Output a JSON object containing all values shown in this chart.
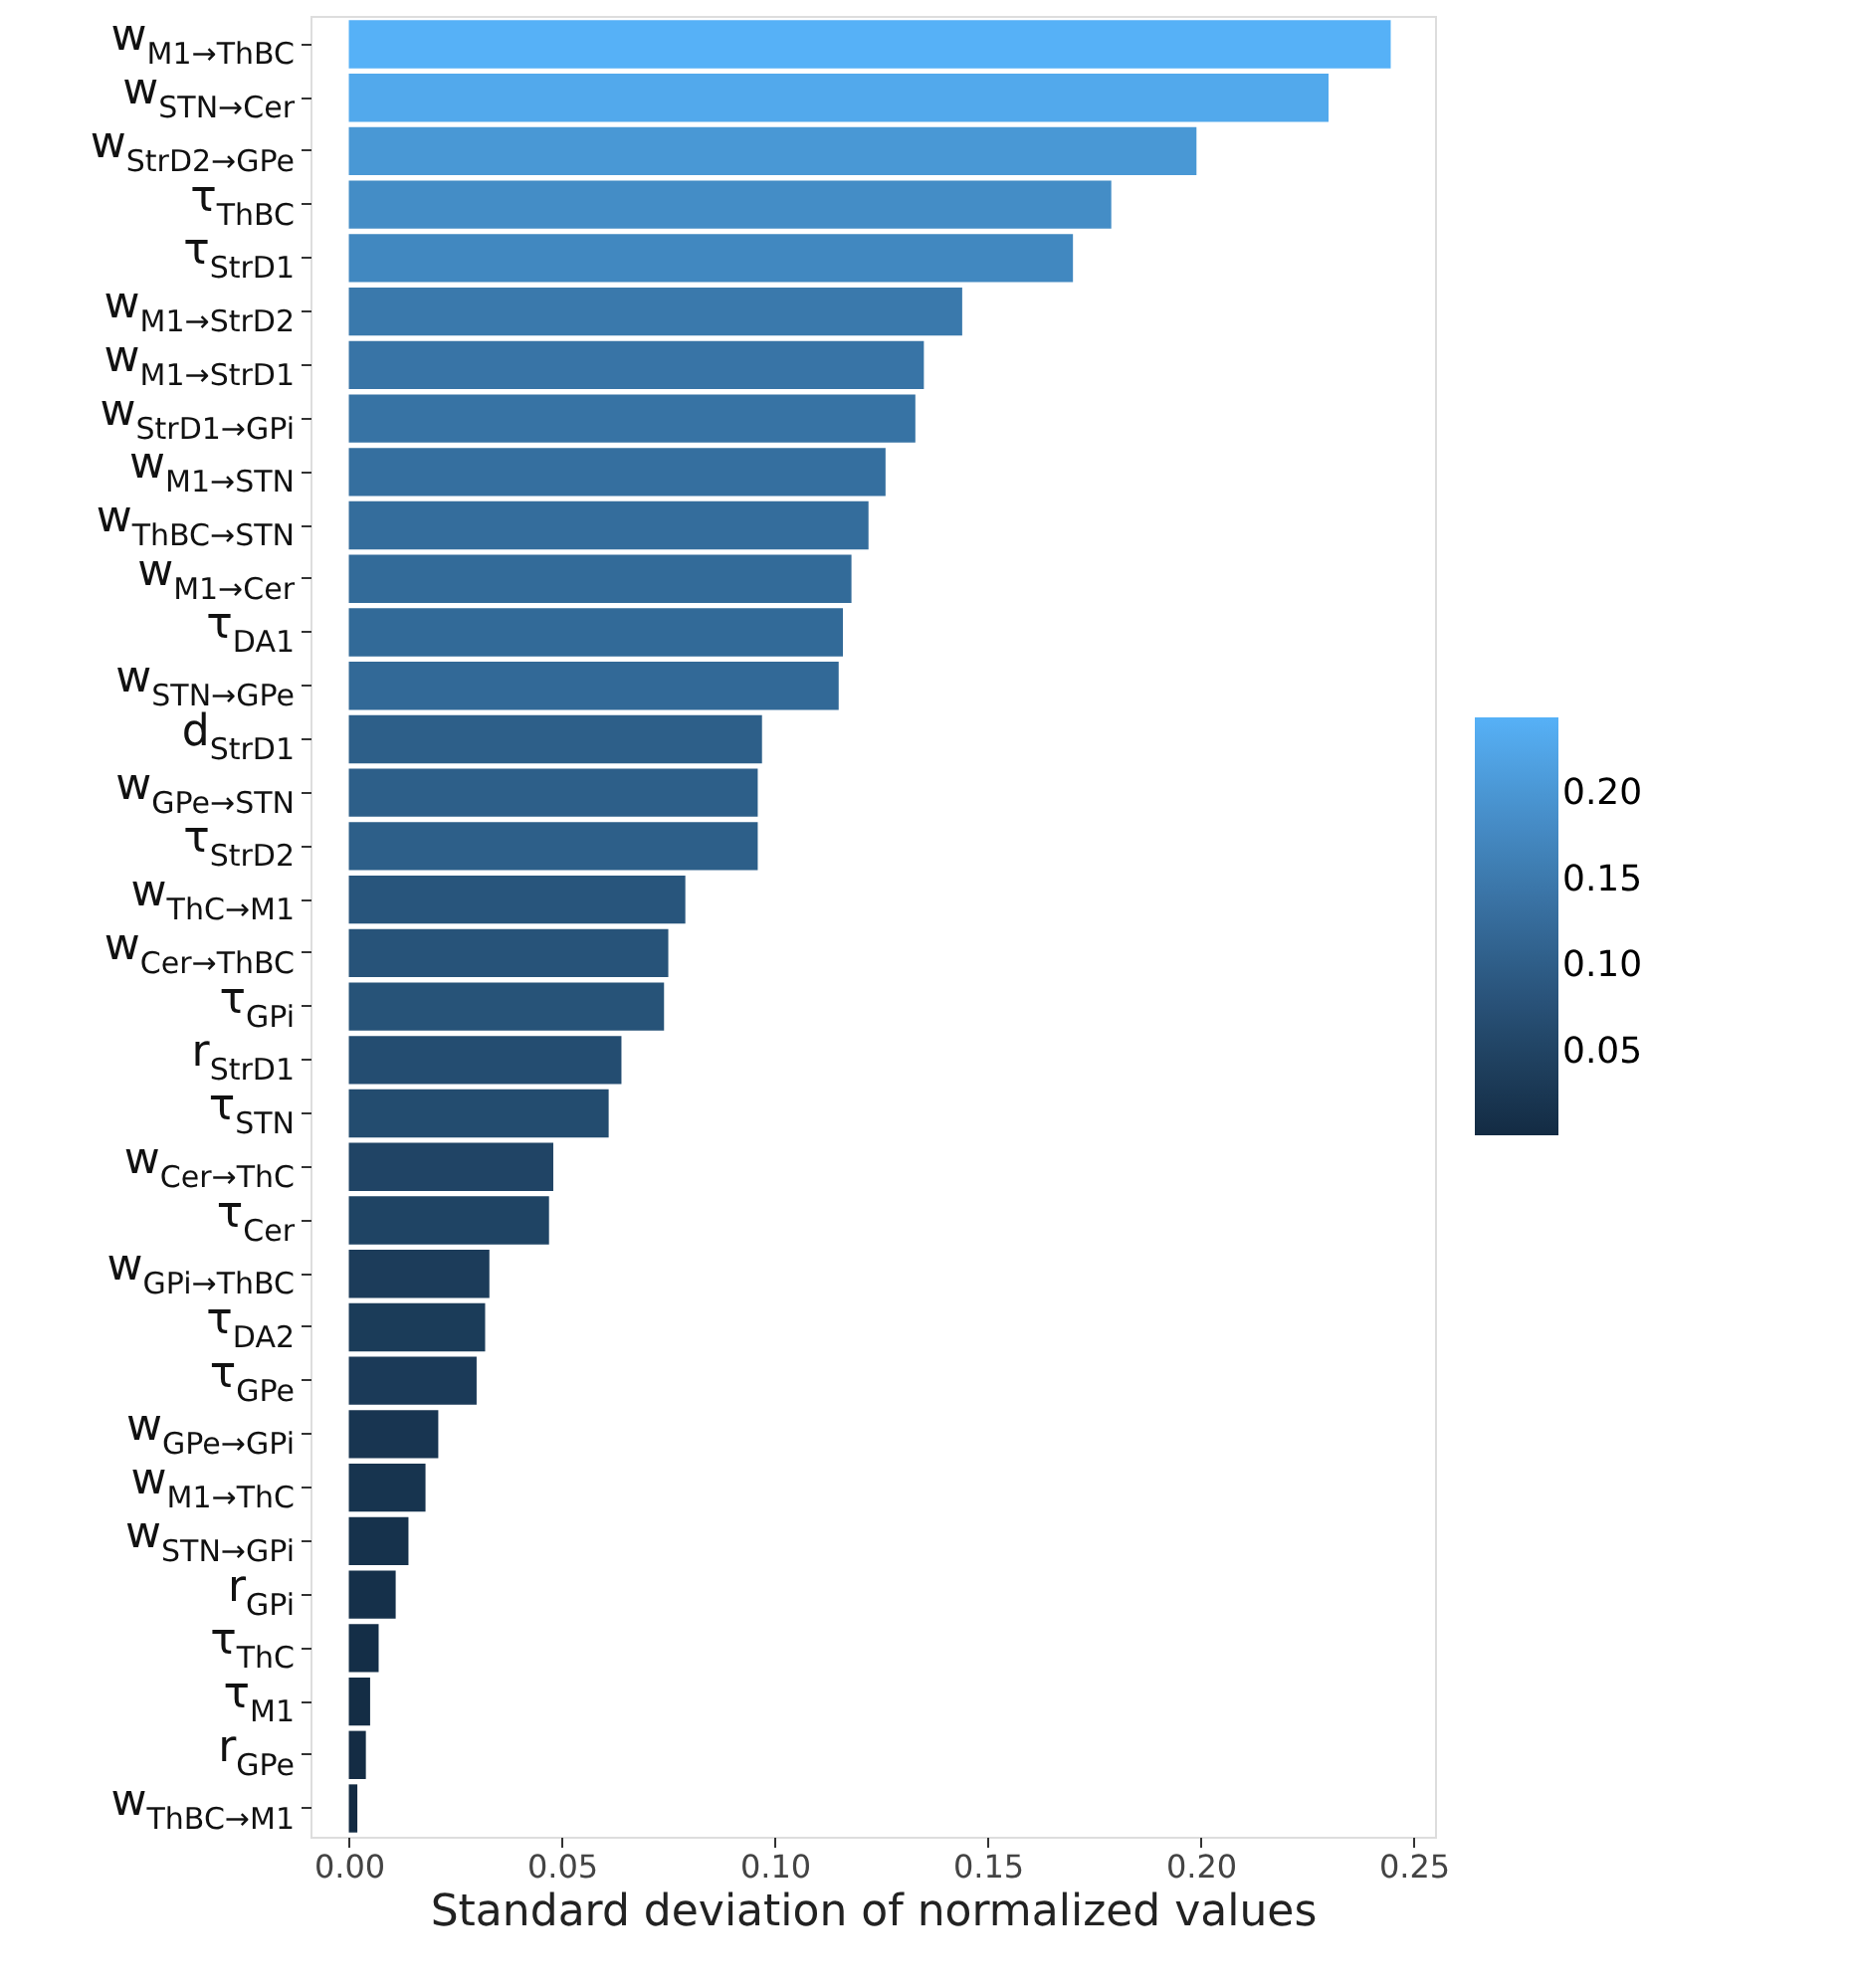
{
  "chart_data": {
    "type": "bar",
    "orientation": "horizontal",
    "xlabel": "Standard deviation of normalized values",
    "categories": [
      "w$_{M1→ThBC}$",
      "w$_{STN→Cer}$",
      "w$_{StrD2→GPe}$",
      "τ$_{ThBC}$",
      "τ$_{StrD1}$",
      "w$_{M1→StrD2}$",
      "w$_{M1→StrD1}$",
      "w$_{StrD1→GPi}$",
      "w$_{M1→STN}$",
      "w$_{ThBC→STN}$",
      "w$_{M1→Cer}$",
      "τ$_{DA1}$",
      "w$_{STN→GPe}$",
      "d$_{StrD1}$",
      "w$_{GPe→STN}$",
      "τ$_{StrD2}$",
      "w$_{ThC→M1}$",
      "w$_{Cer→ThBC}$",
      "τ$_{GPi}$",
      "r$_{StrD1}$",
      "τ$_{STN}$",
      "w$_{Cer→ThC}$",
      "τ$_{Cer}$",
      "w$_{GPi→ThBC}$",
      "τ$_{DA2}$",
      "τ$_{GPe}$",
      "w$_{GPe→GPi}$",
      "w$_{M1→ThC}$",
      "w$_{STN→GPi}$",
      "r$_{GPi}$",
      "τ$_{ThC}$",
      "τ$_{M1}$",
      "r$_{GPe}$",
      "w$_{ThBC→M1}$"
    ],
    "values": [
      0.2446,
      0.23,
      0.199,
      0.179,
      0.17,
      0.144,
      0.135,
      0.133,
      0.126,
      0.122,
      0.118,
      0.116,
      0.115,
      0.097,
      0.096,
      0.096,
      0.079,
      0.075,
      0.074,
      0.064,
      0.061,
      0.048,
      0.047,
      0.033,
      0.032,
      0.03,
      0.021,
      0.018,
      0.014,
      0.011,
      0.007,
      0.005,
      0.004,
      0.002
    ],
    "xlim": [
      -0.009,
      0.255
    ],
    "xticks": [
      {
        "value": 0,
        "label": "0.00"
      },
      {
        "value": 0.05,
        "label": "0.05"
      },
      {
        "value": 0.1,
        "label": "0.10"
      },
      {
        "value": 0.15,
        "label": "0.15"
      },
      {
        "value": 0.2,
        "label": "0.20"
      },
      {
        "value": 0.25,
        "label": "0.25"
      }
    ],
    "clim": [
      0.002,
      0.2446
    ],
    "cticks": [
      0.05,
      {
        "value": 0.1,
        "label": "0.10"
      },
      0.15,
      {
        "value": 0.2,
        "label": "0.20"
      }
    ],
    "colors": [
      "#56b1f7",
      "#52a9ec",
      "#4998d5",
      "#448dc6",
      "#4188c0",
      "#3a79ac",
      "#3874a6",
      "#3773a4",
      "#356f9f",
      "#346d9c",
      "#336b99",
      "#326a98",
      "#326997",
      "#2d5f89",
      "#2d5f89",
      "#2d5f89",
      "#28557c",
      "#275379",
      "#275378",
      "#244d71",
      "#234c6f",
      "#204465",
      "#1f4464",
      "#1c3c5a",
      "#1b3c59",
      "#1b3a58",
      "#183551",
      "#17344f",
      "#16324c",
      "#15304a",
      "#142e47",
      "#142d45",
      "#142c44",
      "#132b43"
    ],
    "grid": false
  }
}
